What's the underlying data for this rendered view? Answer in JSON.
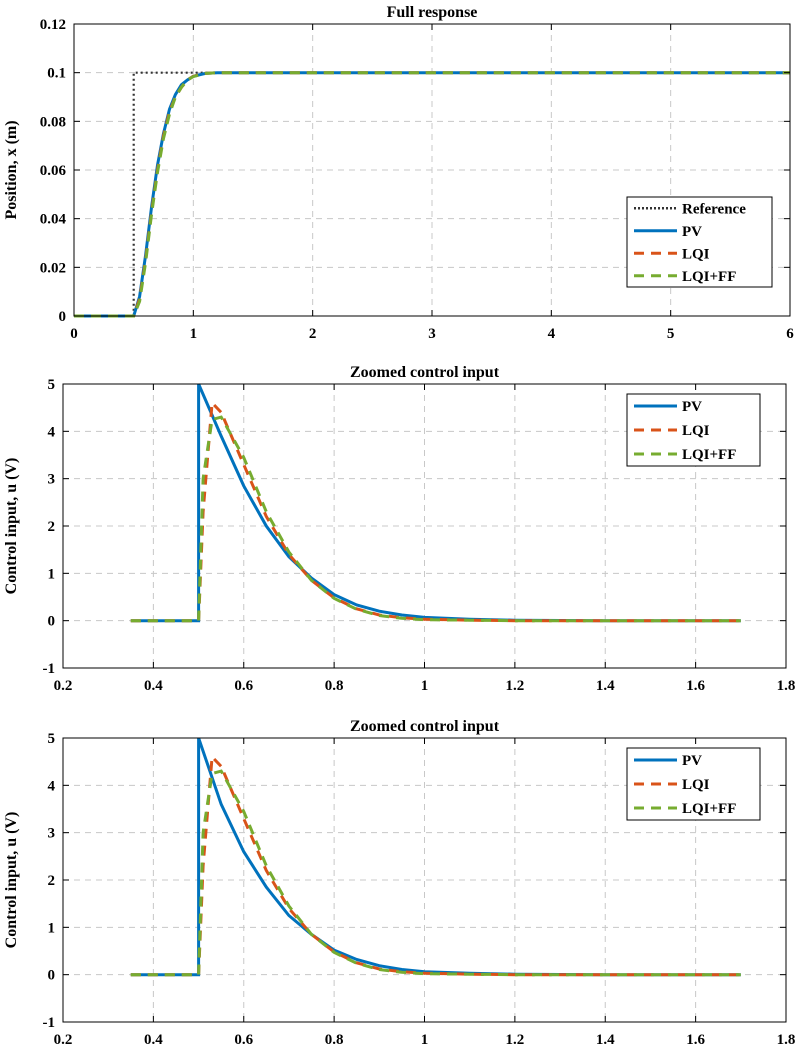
{
  "chart_data": [
    {
      "type": "line",
      "title": "Full response",
      "xlabel": "",
      "ylabel": "Position, x (m)",
      "xlim": [
        0,
        6
      ],
      "ylim": [
        0,
        0.12
      ],
      "xticks": [
        "0",
        "1",
        "2",
        "3",
        "4",
        "5",
        "6"
      ],
      "yticks": [
        "0",
        "0.02",
        "0.04",
        "0.06",
        "0.08",
        "0.1",
        "0.12"
      ],
      "grid": true,
      "legend_position": "lower-right",
      "series": [
        {
          "name": "Reference",
          "color": "#333333",
          "style": "dotted",
          "x": [
            0,
            0.5,
            0.5,
            6
          ],
          "y": [
            0,
            0,
            0.1,
            0.1
          ]
        },
        {
          "name": "PV",
          "color": "#0072BD",
          "style": "solid",
          "x": [
            0,
            0.5,
            0.55,
            0.6,
            0.65,
            0.7,
            0.75,
            0.8,
            0.85,
            0.9,
            0.95,
            1.0,
            1.1,
            1.2,
            6
          ],
          "y": [
            0,
            0,
            0.008,
            0.025,
            0.045,
            0.062,
            0.075,
            0.085,
            0.091,
            0.095,
            0.097,
            0.0985,
            0.0997,
            0.1,
            0.1
          ]
        },
        {
          "name": "LQI",
          "color": "#D95319",
          "style": "dashed",
          "x": [
            0,
            0.5,
            0.55,
            0.6,
            0.65,
            0.7,
            0.75,
            0.8,
            0.85,
            0.9,
            0.95,
            1.0,
            1.1,
            1.2,
            6
          ],
          "y": [
            0,
            0,
            0.007,
            0.023,
            0.043,
            0.06,
            0.074,
            0.084,
            0.09,
            0.094,
            0.097,
            0.0985,
            0.0997,
            0.1,
            0.1
          ]
        },
        {
          "name": "LQI+FF",
          "color": "#77AC30",
          "style": "dashed",
          "x": [
            0,
            0.5,
            0.55,
            0.6,
            0.65,
            0.7,
            0.75,
            0.8,
            0.85,
            0.9,
            0.95,
            1.0,
            1.1,
            1.2,
            6
          ],
          "y": [
            0,
            0,
            0.006,
            0.022,
            0.042,
            0.059,
            0.073,
            0.083,
            0.09,
            0.094,
            0.097,
            0.0984,
            0.0997,
            0.1,
            0.1
          ]
        }
      ]
    },
    {
      "type": "line",
      "title": "Zoomed control input",
      "xlabel": "",
      "ylabel": "Control input, u (V)",
      "xlim": [
        0.2,
        1.8
      ],
      "ylim": [
        -1,
        5
      ],
      "xticks": [
        "0.2",
        "0.4",
        "0.6",
        "0.8",
        "1",
        "1.2",
        "1.4",
        "1.6",
        "1.8"
      ],
      "yticks": [
        "-1",
        "0",
        "1",
        "2",
        "3",
        "4",
        "5"
      ],
      "grid": true,
      "legend_position": "top-right",
      "series": [
        {
          "name": "PV",
          "color": "#0072BD",
          "style": "solid",
          "x": [
            0.35,
            0.5,
            0.5,
            0.55,
            0.6,
            0.65,
            0.7,
            0.75,
            0.8,
            0.85,
            0.9,
            0.95,
            1.0,
            1.1,
            1.2,
            1.4,
            1.7
          ],
          "y": [
            0,
            0,
            5,
            3.9,
            2.85,
            2.0,
            1.35,
            0.9,
            0.55,
            0.33,
            0.2,
            0.12,
            0.07,
            0.03,
            0.01,
            0,
            0
          ]
        },
        {
          "name": "LQI",
          "color": "#D95319",
          "style": "dashed",
          "x": [
            0.35,
            0.5,
            0.51,
            0.53,
            0.55,
            0.6,
            0.65,
            0.7,
            0.75,
            0.8,
            0.85,
            0.9,
            0.95,
            1.0,
            1.1,
            1.2,
            1.4,
            1.7
          ],
          "y": [
            0,
            0,
            2.3,
            4.6,
            4.4,
            3.3,
            2.2,
            1.4,
            0.85,
            0.48,
            0.25,
            0.12,
            0.06,
            0.03,
            0.01,
            0,
            0,
            0
          ]
        },
        {
          "name": "LQI+FF",
          "color": "#77AC30",
          "style": "dashed",
          "x": [
            0.35,
            0.5,
            0.51,
            0.53,
            0.55,
            0.6,
            0.65,
            0.7,
            0.75,
            0.8,
            0.85,
            0.9,
            0.95,
            1.0,
            1.1,
            1.2,
            1.4,
            1.7
          ],
          "y": [
            0,
            0,
            3.0,
            4.25,
            4.3,
            3.45,
            2.3,
            1.45,
            0.85,
            0.47,
            0.24,
            0.11,
            0.05,
            0.02,
            0.01,
            0,
            0,
            0
          ]
        }
      ]
    },
    {
      "type": "line",
      "title": "Zoomed control input",
      "xlabel": "",
      "ylabel": "Control input, u (V)",
      "xlim": [
        0.2,
        1.8
      ],
      "ylim": [
        -1,
        5
      ],
      "xticks": [
        "0.2",
        "0.4",
        "0.6",
        "0.8",
        "1",
        "1.2",
        "1.4",
        "1.6",
        "1.8"
      ],
      "yticks": [
        "-1",
        "0",
        "1",
        "2",
        "3",
        "4",
        "5"
      ],
      "grid": true,
      "legend_position": "top-right",
      "series": [
        {
          "name": "PV",
          "color": "#0072BD",
          "style": "solid",
          "x": [
            0.35,
            0.5,
            0.5,
            0.55,
            0.6,
            0.65,
            0.7,
            0.75,
            0.8,
            0.85,
            0.9,
            0.95,
            1.0,
            1.1,
            1.2,
            1.4,
            1.7
          ],
          "y": [
            0,
            0,
            5,
            3.6,
            2.6,
            1.85,
            1.25,
            0.85,
            0.52,
            0.32,
            0.19,
            0.11,
            0.06,
            0.03,
            0.01,
            0,
            0
          ]
        },
        {
          "name": "LQI",
          "color": "#D95319",
          "style": "dashed",
          "x": [
            0.35,
            0.5,
            0.51,
            0.53,
            0.55,
            0.6,
            0.65,
            0.7,
            0.75,
            0.8,
            0.85,
            0.9,
            0.95,
            1.0,
            1.1,
            1.2,
            1.4,
            1.7
          ],
          "y": [
            0,
            0,
            2.3,
            4.6,
            4.4,
            3.3,
            2.2,
            1.4,
            0.85,
            0.48,
            0.25,
            0.12,
            0.06,
            0.03,
            0.01,
            0,
            0,
            0
          ]
        },
        {
          "name": "LQI+FF",
          "color": "#77AC30",
          "style": "dashed",
          "x": [
            0.35,
            0.5,
            0.51,
            0.53,
            0.55,
            0.6,
            0.65,
            0.7,
            0.75,
            0.8,
            0.85,
            0.9,
            0.95,
            1.0,
            1.1,
            1.2,
            1.4,
            1.7
          ],
          "y": [
            0,
            0,
            3.0,
            4.25,
            4.3,
            3.45,
            2.3,
            1.45,
            0.85,
            0.47,
            0.24,
            0.11,
            0.05,
            0.02,
            0.01,
            0,
            0,
            0
          ]
        }
      ]
    }
  ]
}
